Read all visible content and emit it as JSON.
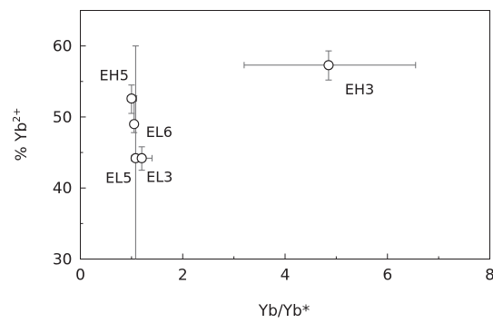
{
  "chart_data": {
    "type": "scatter",
    "title": "",
    "xlabel": "Yb/Yb*",
    "ylabel_prefix": "% Yb",
    "ylabel_sup": "2+",
    "xlim": [
      0,
      8
    ],
    "ylim": [
      30,
      65
    ],
    "x_ticks": [
      0,
      2,
      4,
      6,
      8
    ],
    "x_minor_ticks": [
      1,
      3,
      5,
      7
    ],
    "y_ticks": [
      30,
      40,
      50,
      60
    ],
    "y_minor_ticks": [
      35,
      45,
      55
    ],
    "grid": false,
    "legend": "none",
    "points": [
      {
        "label": "EH3",
        "x": 4.85,
        "y": 57.3,
        "x_err": [
          3.2,
          6.55
        ],
        "y_err": [
          55.2,
          59.3
        ],
        "label_anchor": "lower-right"
      },
      {
        "label": "EH5",
        "x": 1.0,
        "y": 52.6,
        "x_err": [
          0.92,
          1.1
        ],
        "y_err": [
          50.5,
          54.5
        ],
        "label_anchor": "upper-left"
      },
      {
        "label": "EL6",
        "x": 1.05,
        "y": 49.0,
        "x_err": [
          0.98,
          1.1
        ],
        "y_err": [
          47.8,
          53.0
        ],
        "label_anchor": "right"
      },
      {
        "label": "EL5",
        "x": 1.08,
        "y": 44.2,
        "x_err": [
          1.0,
          1.14
        ],
        "y_err": [
          28.0,
          60.0
        ],
        "label_anchor": "lower-left"
      },
      {
        "label": "EL3",
        "x": 1.2,
        "y": 44.2,
        "x_err": [
          1.0,
          1.4
        ],
        "y_err": [
          42.5,
          45.8
        ],
        "label_anchor": "lower-right"
      }
    ]
  }
}
